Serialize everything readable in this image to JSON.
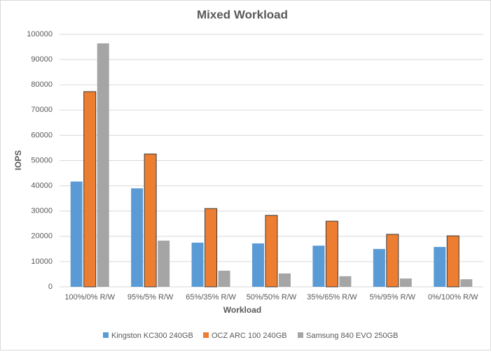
{
  "chart_data": {
    "type": "bar",
    "title": "Mixed Workload",
    "x_label": "Workload",
    "y_label": "IOPS",
    "categories": [
      "100%/0% R/W",
      "95%/5% R/W",
      "65%/35% R/W",
      "50%/50% R/W",
      "35%/65% R/W",
      "5%/95% R/W",
      "0%/100% R/W"
    ],
    "series": [
      {
        "name": "Kingston KC300 240GB",
        "color": "#5b9bd5",
        "values": [
          41700,
          39000,
          17500,
          17200,
          16300,
          15000,
          15800
        ]
      },
      {
        "name": "OCZ ARC 100 240GB",
        "color": "#ed7d31",
        "values": [
          77300,
          52600,
          31000,
          28300,
          26000,
          20800,
          20200
        ]
      },
      {
        "name": "Samsung 840 EVO 250GB",
        "color": "#a5a5a5",
        "values": [
          96400,
          18300,
          6400,
          5300,
          4200,
          3300,
          3000
        ]
      }
    ],
    "ylim": [
      0,
      100000
    ],
    "yticks": [
      0,
      10000,
      20000,
      30000,
      40000,
      50000,
      60000,
      70000,
      80000,
      90000,
      100000
    ],
    "grid": true,
    "legend": "bottom"
  }
}
